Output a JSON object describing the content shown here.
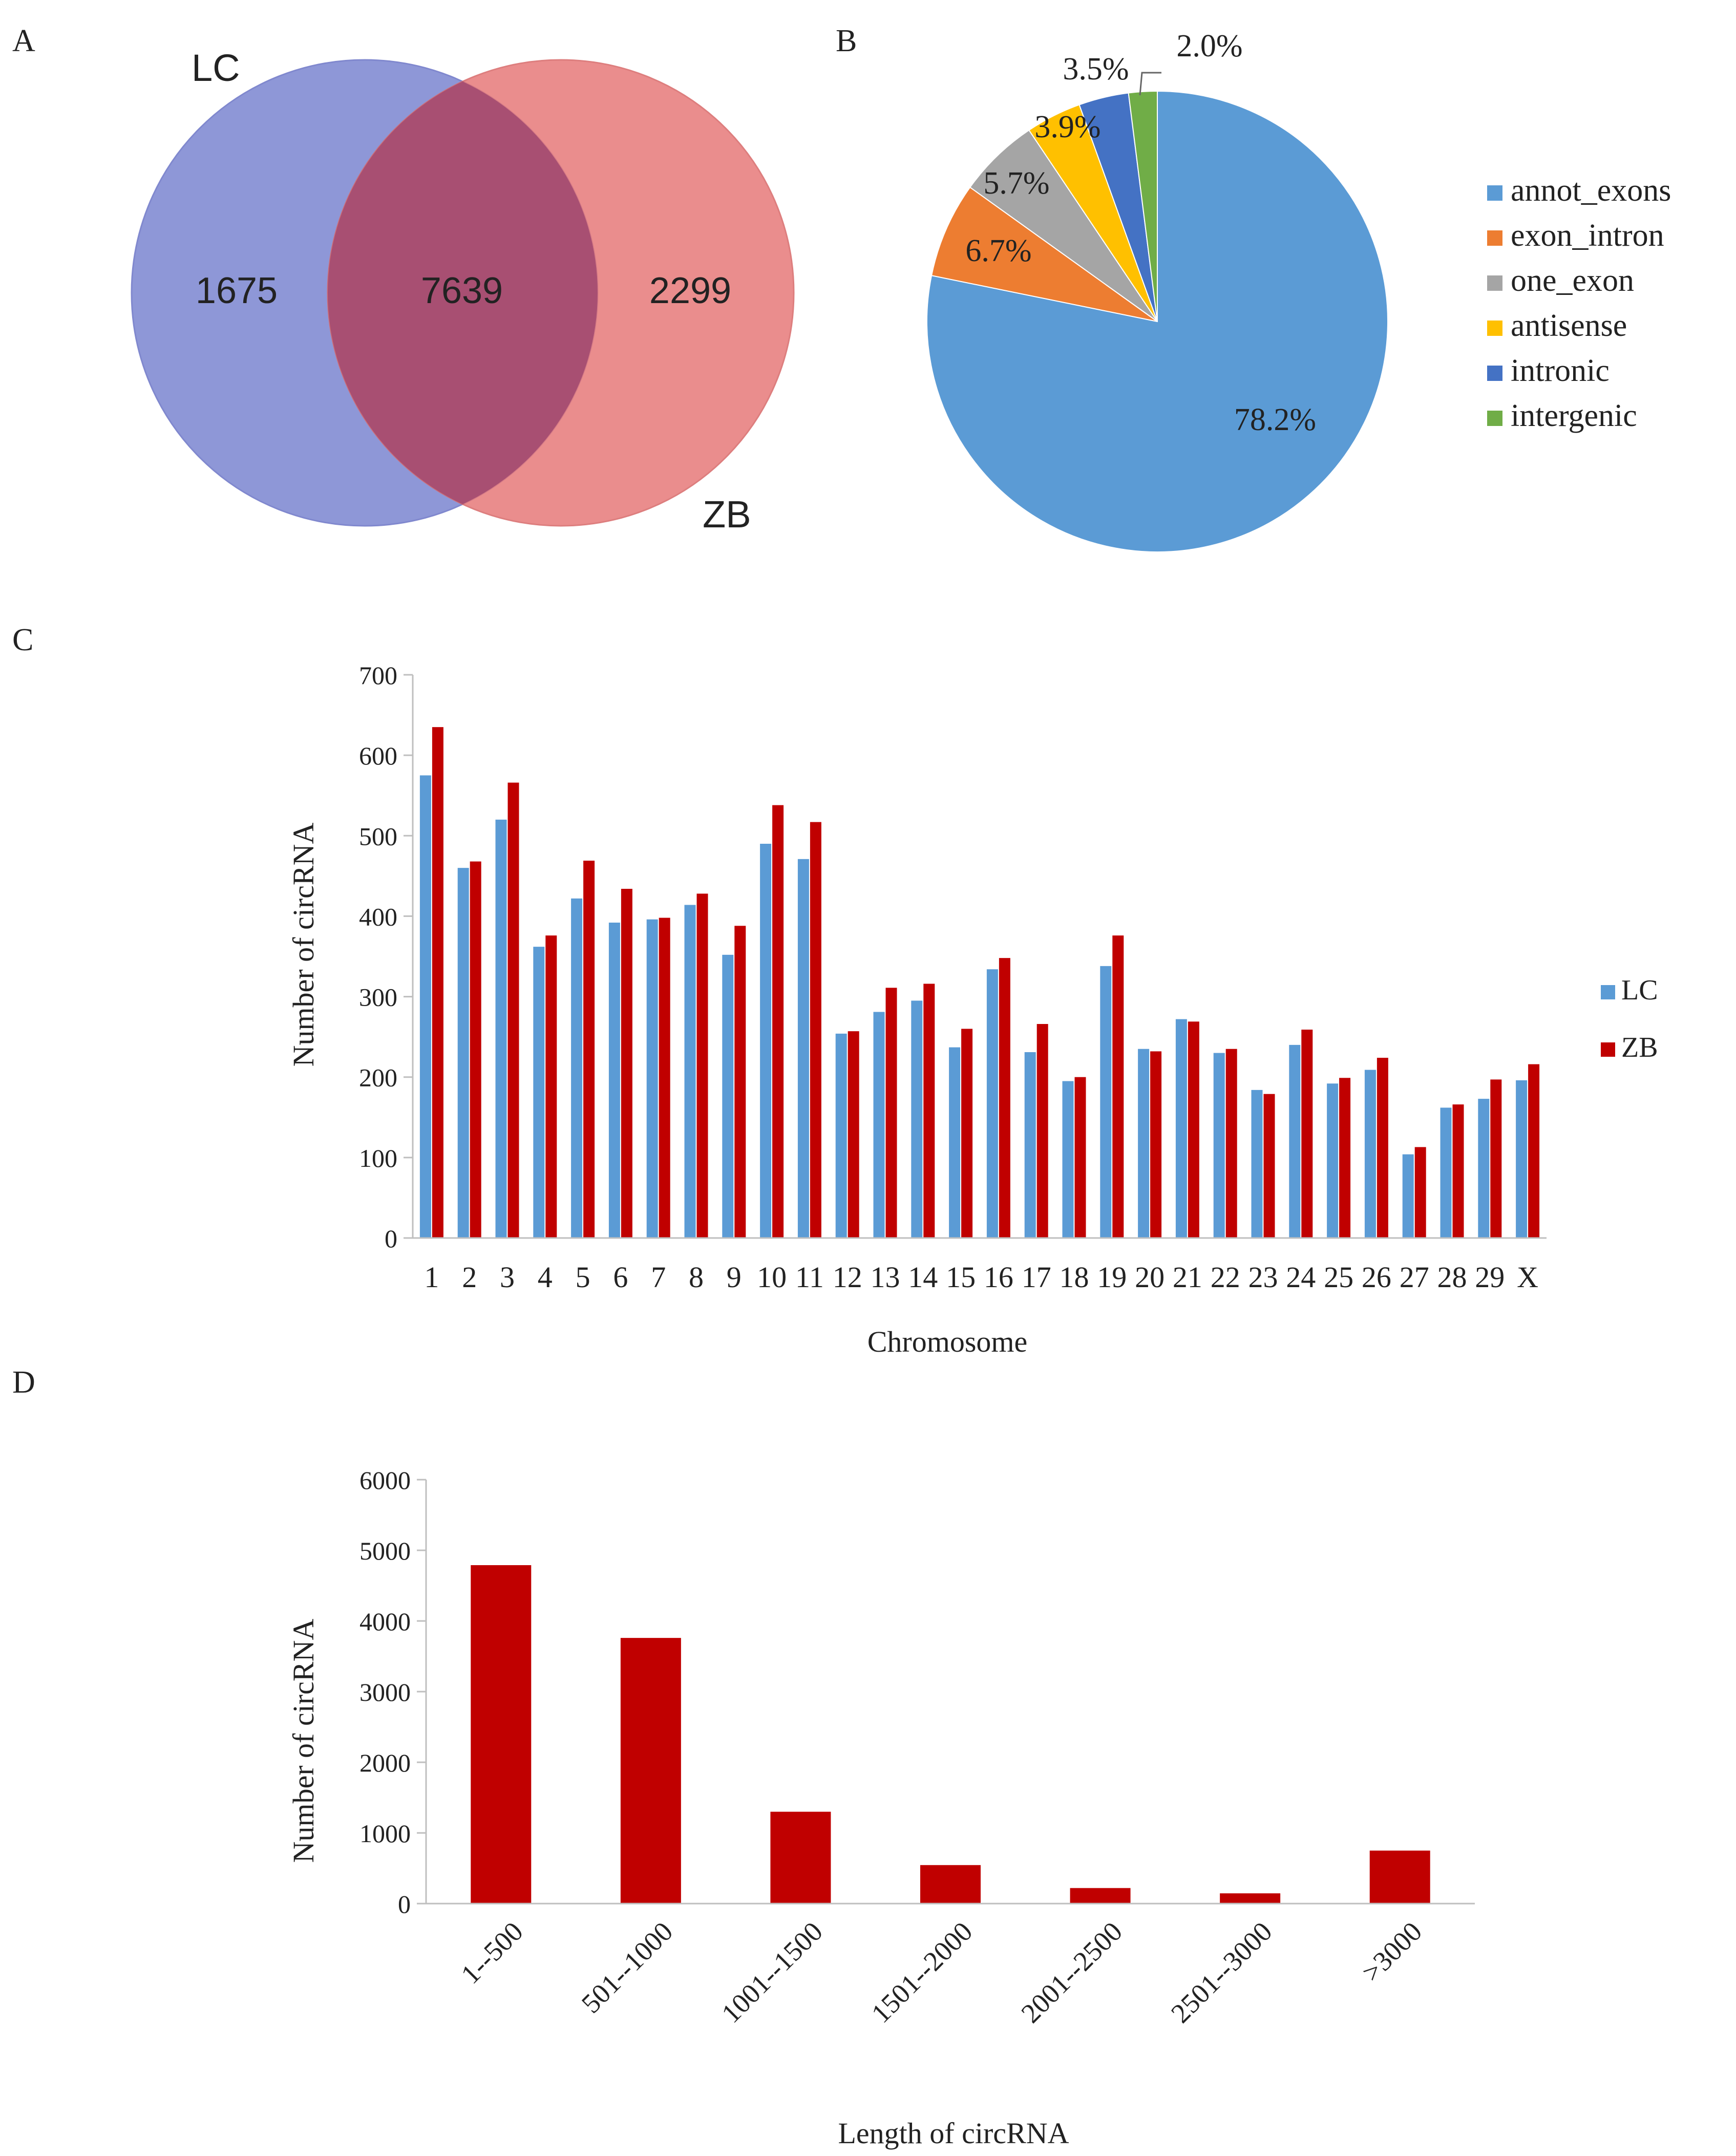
{
  "panel_labels": {
    "a": "A",
    "b": "B",
    "c": "C",
    "d": "D"
  },
  "colors": {
    "venn_lc": "#7B86D1",
    "venn_zb": "#E77A7A",
    "venn_overlap": "#A84F72",
    "lc_bar": "#5B9BD5",
    "zb_bar": "#C00000",
    "pie": [
      "#5B9BD5",
      "#ED7D31",
      "#A5A5A5",
      "#FFC000",
      "#4472C4",
      "#70AD47"
    ]
  },
  "chart_data": [
    {
      "panel": "A",
      "type": "venn",
      "sets": [
        {
          "name": "LC",
          "only": "1675"
        },
        {
          "name": "ZB",
          "only": "2299"
        }
      ],
      "intersection": "7639"
    },
    {
      "panel": "B",
      "type": "pie",
      "slices": [
        {
          "name": "annot_exons",
          "value": 78.2,
          "label": "78.2%"
        },
        {
          "name": "exon_intron",
          "value": 6.7,
          "label": "6.7%"
        },
        {
          "name": "one_exon",
          "value": 5.7,
          "label": "5.7%"
        },
        {
          "name": "antisense",
          "value": 3.9,
          "label": "3.9%"
        },
        {
          "name": "intronic",
          "value": 3.5,
          "label": "3.5%"
        },
        {
          "name": "intergenic",
          "value": 2.0,
          "label": "2.0%"
        }
      ],
      "legend_position": "right"
    },
    {
      "panel": "C",
      "type": "bar",
      "xlabel": "Chromosome",
      "ylabel": "Number of circRNA",
      "ylim": [
        0,
        700
      ],
      "yticks": [
        0,
        100,
        200,
        300,
        400,
        500,
        600,
        700
      ],
      "categories": [
        "1",
        "2",
        "3",
        "4",
        "5",
        "6",
        "7",
        "8",
        "9",
        "10",
        "11",
        "12",
        "13",
        "14",
        "15",
        "16",
        "17",
        "18",
        "19",
        "20",
        "21",
        "22",
        "23",
        "24",
        "25",
        "26",
        "27",
        "28",
        "29",
        "X"
      ],
      "series": [
        {
          "name": "LC",
          "values": [
            575,
            460,
            520,
            362,
            422,
            392,
            396,
            414,
            352,
            490,
            471,
            254,
            281,
            295,
            237,
            334,
            231,
            195,
            338,
            235,
            272,
            230,
            184,
            240,
            192,
            209,
            104,
            162,
            173,
            196
          ]
        },
        {
          "name": "ZB",
          "values": [
            635,
            468,
            566,
            376,
            469,
            434,
            398,
            428,
            388,
            538,
            517,
            257,
            311,
            316,
            260,
            348,
            266,
            200,
            376,
            232,
            269,
            235,
            179,
            259,
            199,
            224,
            113,
            166,
            197,
            216
          ]
        }
      ],
      "legend_position": "right"
    },
    {
      "panel": "D",
      "type": "bar",
      "xlabel": "Length of circRNA",
      "ylabel": "Number of circRNA",
      "ylim": [
        0,
        6000
      ],
      "yticks": [
        0,
        1000,
        2000,
        3000,
        4000,
        5000,
        6000
      ],
      "categories": [
        "1--500",
        "501--1000",
        "1001--1500",
        "1501--2000",
        "2001--2500",
        "2501--3000",
        ">3000"
      ],
      "values": [
        4790,
        3760,
        1300,
        545,
        220,
        145,
        750
      ]
    }
  ]
}
